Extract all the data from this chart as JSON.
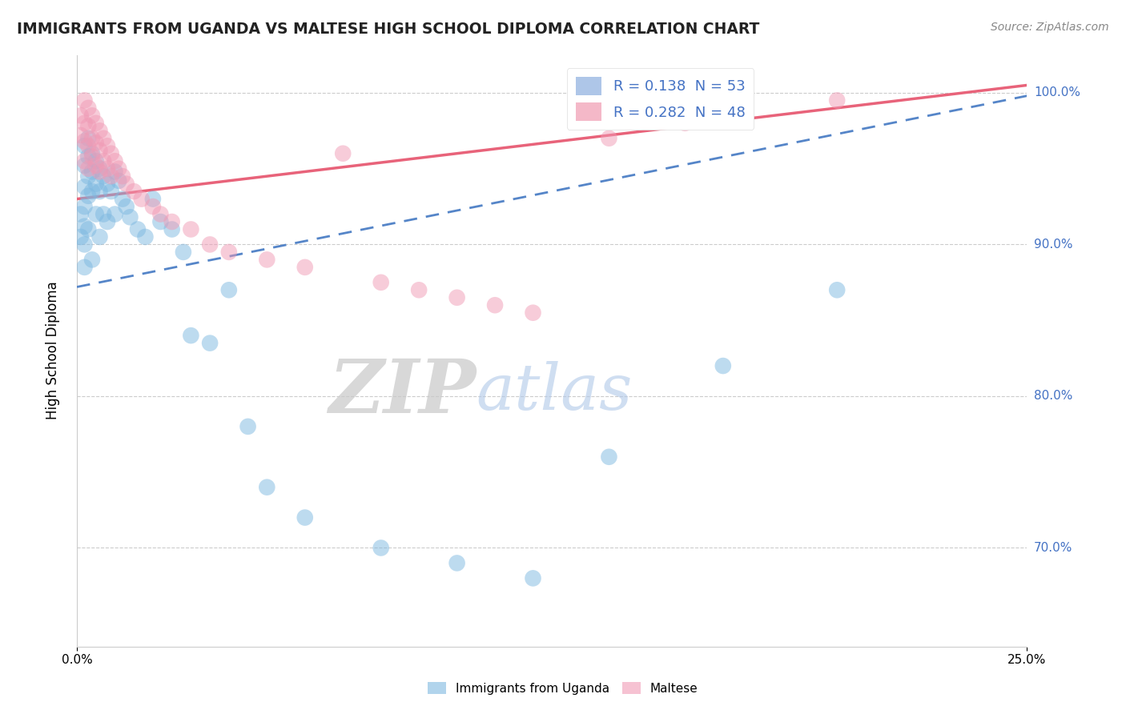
{
  "title": "IMMIGRANTS FROM UGANDA VS MALTESE HIGH SCHOOL DIPLOMA CORRELATION CHART",
  "source": "Source: ZipAtlas.com",
  "ylabel": "High School Diploma",
  "legend_entries": [
    {
      "label": "R = 0.138  N = 53",
      "color": "#aec6e8"
    },
    {
      "label": "R = 0.282  N = 48",
      "color": "#f4b8c8"
    }
  ],
  "legend_bottom": [
    "Immigrants from Uganda",
    "Maltese"
  ],
  "blue_color": "#7db8e0",
  "pink_color": "#f09ab5",
  "blue_line_color": "#5585c8",
  "pink_line_color": "#e8637a",
  "watermark_zip": "ZIP",
  "watermark_atlas": "atlas",
  "xlim": [
    0.0,
    0.25
  ],
  "ylim": [
    0.635,
    1.025
  ],
  "y_ticks": [
    0.7,
    0.8,
    0.9,
    1.0
  ],
  "blue_line_x0": 0.0,
  "blue_line_y0": 0.872,
  "blue_line_x1": 0.25,
  "blue_line_y1": 0.998,
  "pink_line_x0": 0.0,
  "pink_line_y0": 0.93,
  "pink_line_x1": 0.25,
  "pink_line_y1": 1.005,
  "blue_pts_x": [
    0.001,
    0.001,
    0.002,
    0.002,
    0.002,
    0.002,
    0.002,
    0.002,
    0.002,
    0.003,
    0.003,
    0.003,
    0.003,
    0.003,
    0.004,
    0.004,
    0.004,
    0.004,
    0.005,
    0.005,
    0.005,
    0.006,
    0.006,
    0.006,
    0.007,
    0.007,
    0.008,
    0.008,
    0.009,
    0.01,
    0.01,
    0.011,
    0.012,
    0.013,
    0.014,
    0.016,
    0.018,
    0.02,
    0.022,
    0.025,
    0.028,
    0.03,
    0.035,
    0.04,
    0.045,
    0.05,
    0.06,
    0.08,
    0.1,
    0.12,
    0.14,
    0.17,
    0.2
  ],
  "blue_pts_y": [
    0.92,
    0.905,
    0.965,
    0.952,
    0.938,
    0.925,
    0.912,
    0.9,
    0.885,
    0.97,
    0.958,
    0.945,
    0.932,
    0.91,
    0.96,
    0.948,
    0.935,
    0.89,
    0.955,
    0.94,
    0.92,
    0.95,
    0.935,
    0.905,
    0.945,
    0.92,
    0.94,
    0.915,
    0.935,
    0.948,
    0.92,
    0.942,
    0.93,
    0.925,
    0.918,
    0.91,
    0.905,
    0.93,
    0.915,
    0.91,
    0.895,
    0.84,
    0.835,
    0.87,
    0.78,
    0.74,
    0.72,
    0.7,
    0.69,
    0.68,
    0.76,
    0.82,
    0.87
  ],
  "pink_pts_x": [
    0.001,
    0.001,
    0.002,
    0.002,
    0.002,
    0.002,
    0.003,
    0.003,
    0.003,
    0.003,
    0.004,
    0.004,
    0.004,
    0.005,
    0.005,
    0.005,
    0.006,
    0.006,
    0.006,
    0.007,
    0.007,
    0.008,
    0.008,
    0.009,
    0.009,
    0.01,
    0.011,
    0.012,
    0.013,
    0.015,
    0.017,
    0.02,
    0.022,
    0.025,
    0.03,
    0.035,
    0.04,
    0.05,
    0.06,
    0.07,
    0.08,
    0.09,
    0.1,
    0.11,
    0.12,
    0.14,
    0.16,
    0.2
  ],
  "pink_pts_y": [
    0.985,
    0.972,
    0.995,
    0.98,
    0.968,
    0.955,
    0.99,
    0.978,
    0.965,
    0.95,
    0.985,
    0.97,
    0.958,
    0.98,
    0.967,
    0.952,
    0.975,
    0.962,
    0.948,
    0.97,
    0.955,
    0.965,
    0.95,
    0.96,
    0.945,
    0.955,
    0.95,
    0.945,
    0.94,
    0.935,
    0.93,
    0.925,
    0.92,
    0.915,
    0.91,
    0.9,
    0.895,
    0.89,
    0.885,
    0.96,
    0.875,
    0.87,
    0.865,
    0.86,
    0.855,
    0.97,
    0.98,
    0.995
  ]
}
